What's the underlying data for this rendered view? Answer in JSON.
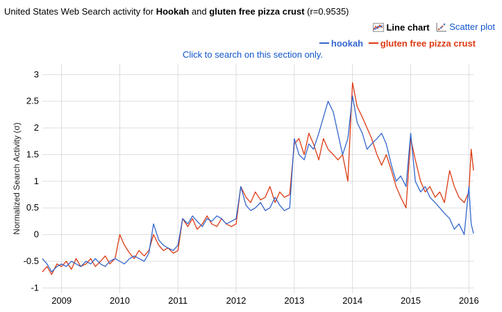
{
  "header": {
    "prefix": "United States Web Search activity for ",
    "term1": "Hookah",
    "mid": " and ",
    "term2": "gluten free pizza crust",
    "suffix": " (r=0.9535)"
  },
  "toggles": {
    "line_label": "Line chart",
    "scatter_label": "Scatter plot"
  },
  "hint": "Click to search on this section only.",
  "colors": {
    "hookah": "#3366cc",
    "gluten": "#dc3912",
    "grid": "#dddddd",
    "link": "#1155cc"
  },
  "chart_data": {
    "type": "line",
    "ylabel": "Normalized Search Activity (σ)",
    "xlabel": "",
    "ylim": [
      -1.1,
      3.2
    ],
    "xlim": [
      2008.67,
      2016.08
    ],
    "grid": true,
    "legend_position": "top-right",
    "x_ticks": [
      "2009",
      "2010",
      "2011",
      "2012",
      "2013",
      "2014",
      "2015",
      "2016"
    ],
    "y_ticks": [
      "-1",
      "-0.5",
      "0",
      "0.5",
      "1",
      "1.5",
      "2",
      "2.5",
      "3"
    ],
    "series": [
      {
        "name": "hookah",
        "color": "#3366cc",
        "points": [
          [
            2008.67,
            -0.45
          ],
          [
            2008.75,
            -0.55
          ],
          [
            2008.83,
            -0.7
          ],
          [
            2008.92,
            -0.6
          ],
          [
            2009.0,
            -0.55
          ],
          [
            2009.08,
            -0.6
          ],
          [
            2009.17,
            -0.5
          ],
          [
            2009.25,
            -0.55
          ],
          [
            2009.33,
            -0.6
          ],
          [
            2009.42,
            -0.5
          ],
          [
            2009.5,
            -0.55
          ],
          [
            2009.58,
            -0.45
          ],
          [
            2009.67,
            -0.55
          ],
          [
            2009.75,
            -0.6
          ],
          [
            2009.83,
            -0.5
          ],
          [
            2009.92,
            -0.45
          ],
          [
            2010.0,
            -0.5
          ],
          [
            2010.08,
            -0.55
          ],
          [
            2010.17,
            -0.45
          ],
          [
            2010.25,
            -0.4
          ],
          [
            2010.33,
            -0.45
          ],
          [
            2010.42,
            -0.5
          ],
          [
            2010.5,
            -0.35
          ],
          [
            2010.58,
            0.2
          ],
          [
            2010.67,
            -0.1
          ],
          [
            2010.75,
            -0.2
          ],
          [
            2010.83,
            -0.25
          ],
          [
            2010.92,
            -0.3
          ],
          [
            2011.0,
            -0.2
          ],
          [
            2011.08,
            0.3
          ],
          [
            2011.17,
            0.2
          ],
          [
            2011.25,
            0.35
          ],
          [
            2011.33,
            0.25
          ],
          [
            2011.42,
            0.15
          ],
          [
            2011.5,
            0.3
          ],
          [
            2011.58,
            0.25
          ],
          [
            2011.67,
            0.35
          ],
          [
            2011.75,
            0.3
          ],
          [
            2011.83,
            0.2
          ],
          [
            2011.92,
            0.25
          ],
          [
            2012.0,
            0.3
          ],
          [
            2012.08,
            0.9
          ],
          [
            2012.17,
            0.55
          ],
          [
            2012.25,
            0.45
          ],
          [
            2012.33,
            0.5
          ],
          [
            2012.42,
            0.6
          ],
          [
            2012.5,
            0.45
          ],
          [
            2012.58,
            0.5
          ],
          [
            2012.67,
            0.7
          ],
          [
            2012.75,
            0.55
          ],
          [
            2012.83,
            0.45
          ],
          [
            2012.92,
            0.5
          ],
          [
            2013.0,
            1.8
          ],
          [
            2013.08,
            1.5
          ],
          [
            2013.17,
            1.4
          ],
          [
            2013.25,
            1.7
          ],
          [
            2013.33,
            1.6
          ],
          [
            2013.42,
            1.9
          ],
          [
            2013.5,
            2.2
          ],
          [
            2013.58,
            2.5
          ],
          [
            2013.67,
            2.3
          ],
          [
            2013.75,
            1.9
          ],
          [
            2013.83,
            1.5
          ],
          [
            2013.92,
            1.8
          ],
          [
            2014.0,
            2.6
          ],
          [
            2014.08,
            2.1
          ],
          [
            2014.17,
            1.9
          ],
          [
            2014.25,
            1.6
          ],
          [
            2014.33,
            1.7
          ],
          [
            2014.42,
            1.8
          ],
          [
            2014.5,
            1.9
          ],
          [
            2014.58,
            1.7
          ],
          [
            2014.67,
            1.3
          ],
          [
            2014.75,
            1.0
          ],
          [
            2014.83,
            1.1
          ],
          [
            2014.92,
            0.9
          ],
          [
            2015.0,
            1.9
          ],
          [
            2015.08,
            1.0
          ],
          [
            2015.17,
            0.8
          ],
          [
            2015.25,
            0.9
          ],
          [
            2015.33,
            0.7
          ],
          [
            2015.42,
            0.6
          ],
          [
            2015.5,
            0.5
          ],
          [
            2015.58,
            0.4
          ],
          [
            2015.67,
            0.3
          ],
          [
            2015.75,
            0.1
          ],
          [
            2015.83,
            0.2
          ],
          [
            2015.92,
            0.0
          ],
          [
            2016.0,
            0.9
          ],
          [
            2016.04,
            0.2
          ],
          [
            2016.08,
            0.02
          ]
        ]
      },
      {
        "name": "gluten free pizza crust",
        "color": "#dc3912",
        "points": [
          [
            2008.67,
            -0.7
          ],
          [
            2008.75,
            -0.6
          ],
          [
            2008.83,
            -0.75
          ],
          [
            2008.92,
            -0.55
          ],
          [
            2009.0,
            -0.6
          ],
          [
            2009.08,
            -0.5
          ],
          [
            2009.17,
            -0.65
          ],
          [
            2009.25,
            -0.45
          ],
          [
            2009.33,
            -0.6
          ],
          [
            2009.42,
            -0.55
          ],
          [
            2009.5,
            -0.45
          ],
          [
            2009.58,
            -0.6
          ],
          [
            2009.67,
            -0.5
          ],
          [
            2009.75,
            -0.4
          ],
          [
            2009.83,
            -0.55
          ],
          [
            2009.92,
            -0.45
          ],
          [
            2010.0,
            0.0
          ],
          [
            2010.08,
            -0.2
          ],
          [
            2010.17,
            -0.35
          ],
          [
            2010.25,
            -0.45
          ],
          [
            2010.33,
            -0.3
          ],
          [
            2010.42,
            -0.4
          ],
          [
            2010.5,
            -0.3
          ],
          [
            2010.58,
            0.0
          ],
          [
            2010.67,
            -0.2
          ],
          [
            2010.75,
            -0.3
          ],
          [
            2010.83,
            -0.25
          ],
          [
            2010.92,
            -0.35
          ],
          [
            2011.0,
            -0.3
          ],
          [
            2011.08,
            0.3
          ],
          [
            2011.17,
            0.15
          ],
          [
            2011.25,
            0.3
          ],
          [
            2011.33,
            0.1
          ],
          [
            2011.42,
            0.2
          ],
          [
            2011.5,
            0.35
          ],
          [
            2011.58,
            0.2
          ],
          [
            2011.67,
            0.15
          ],
          [
            2011.75,
            0.3
          ],
          [
            2011.83,
            0.2
          ],
          [
            2011.92,
            0.15
          ],
          [
            2012.0,
            0.2
          ],
          [
            2012.08,
            0.9
          ],
          [
            2012.17,
            0.7
          ],
          [
            2012.25,
            0.6
          ],
          [
            2012.33,
            0.8
          ],
          [
            2012.42,
            0.65
          ],
          [
            2012.5,
            0.7
          ],
          [
            2012.58,
            0.9
          ],
          [
            2012.67,
            0.6
          ],
          [
            2012.75,
            0.8
          ],
          [
            2012.83,
            0.7
          ],
          [
            2012.92,
            0.75
          ],
          [
            2013.0,
            1.7
          ],
          [
            2013.08,
            1.8
          ],
          [
            2013.17,
            1.5
          ],
          [
            2013.25,
            1.9
          ],
          [
            2013.33,
            1.7
          ],
          [
            2013.42,
            1.4
          ],
          [
            2013.5,
            1.8
          ],
          [
            2013.58,
            1.6
          ],
          [
            2013.67,
            1.5
          ],
          [
            2013.75,
            1.4
          ],
          [
            2013.83,
            1.5
          ],
          [
            2013.92,
            1.0
          ],
          [
            2014.0,
            2.85
          ],
          [
            2014.08,
            2.4
          ],
          [
            2014.17,
            2.2
          ],
          [
            2014.25,
            2.0
          ],
          [
            2014.33,
            1.8
          ],
          [
            2014.42,
            1.5
          ],
          [
            2014.5,
            1.3
          ],
          [
            2014.58,
            1.5
          ],
          [
            2014.67,
            1.2
          ],
          [
            2014.75,
            0.9
          ],
          [
            2014.83,
            0.7
          ],
          [
            2014.92,
            0.5
          ],
          [
            2015.0,
            1.8
          ],
          [
            2015.08,
            1.4
          ],
          [
            2015.17,
            1.0
          ],
          [
            2015.25,
            0.8
          ],
          [
            2015.33,
            0.9
          ],
          [
            2015.42,
            0.7
          ],
          [
            2015.5,
            0.8
          ],
          [
            2015.58,
            0.6
          ],
          [
            2015.67,
            1.2
          ],
          [
            2015.75,
            0.9
          ],
          [
            2015.83,
            0.7
          ],
          [
            2015.92,
            0.6
          ],
          [
            2016.0,
            0.8
          ],
          [
            2016.04,
            1.6
          ],
          [
            2016.08,
            1.2
          ]
        ]
      }
    ]
  }
}
